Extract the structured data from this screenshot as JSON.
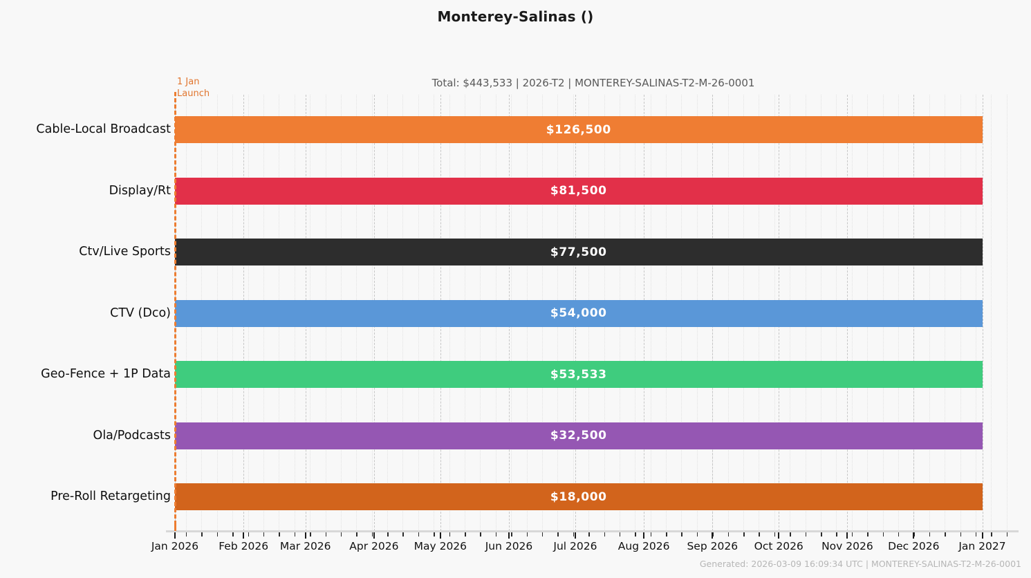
{
  "title": "Monterey-Salinas ()",
  "subtitle": "Total: $443,533  |  2026-T2  |  MONTEREY-SALINAS-T2-M-26-0001",
  "launch": {
    "label": "1 Jan\nLaunch",
    "color": "#ED7D31"
  },
  "footer": "Generated: 2026-03-09 16:09:34 UTC  |  MONTEREY-SALINAS-T2-M-26-0001",
  "chart_data": {
    "type": "bar",
    "orientation": "horizontal",
    "title": "Monterey-Salinas ()",
    "total": 443533,
    "total_label": "Total: $443,533",
    "period_label": "2026-T2",
    "order_code": "MONTEREY-SALINAS-T2-M-26-0001",
    "categories": [
      "Cable-Local Broadcast",
      "Display/Rt",
      "Ctv/Live Sports",
      "CTV (Dco)",
      "Geo-Fence + 1P Data",
      "Ola/Podcasts",
      "Pre-Roll Retargeting"
    ],
    "values": [
      126500,
      81500,
      77500,
      54000,
      53533,
      32500,
      18000
    ],
    "value_labels": [
      "$126,500",
      "$81,500",
      "$77,500",
      "$54,000",
      "$53,533",
      "$32,500",
      "$18,000"
    ],
    "bar_colors": [
      "#EF7D33",
      "#E23049",
      "#2D2D2D",
      "#5A97D8",
      "#3FCC7E",
      "#9557B3",
      "#D2641C"
    ],
    "bar_span": {
      "start": "Jan 2026",
      "end": "Jan 2027"
    },
    "x_axis": {
      "tick_labels": [
        "Jan 2026",
        "Feb 2026",
        "Mar 2026",
        "Apr 2026",
        "May 2026",
        "Jun 2026",
        "Jul 2026",
        "Aug 2026",
        "Sep 2026",
        "Oct 2026",
        "Nov 2026",
        "Dec 2026",
        "Jan 2027"
      ],
      "minor_grid": "weekly",
      "grid": true
    },
    "annotations": [
      {
        "text": "1 Jan Launch",
        "at": "Jan 2026",
        "color": "#ED7D31"
      }
    ],
    "legend": "none"
  }
}
